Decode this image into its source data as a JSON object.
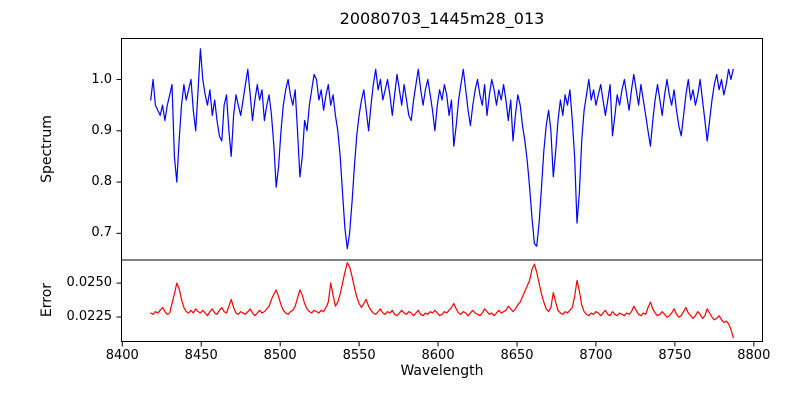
{
  "title": "20080703_1445m28_013",
  "axes": {
    "x": {
      "label": "Wavelength",
      "ticks": [
        8400,
        8450,
        8500,
        8550,
        8600,
        8650,
        8700,
        8750,
        8800
      ]
    },
    "spectrum": {
      "ylabel": "Spectrum",
      "ytick_labels": [
        "1.0",
        "0.9",
        "0.8",
        "0.7"
      ],
      "ytick_values": [
        1.0,
        0.9,
        0.8,
        0.7
      ]
    },
    "error": {
      "ylabel": "Error",
      "ytick_labels": [
        "0.0250",
        "0.0225"
      ],
      "ytick_values": [
        0.025,
        0.0225
      ]
    }
  },
  "chart_data": [
    {
      "type": "line",
      "name": "spectrum",
      "title": "20080703_1445m28_013",
      "ylabel": "Spectrum",
      "color": "#0000ff",
      "grid": false,
      "legend": "none",
      "x_start": 8418,
      "x_step": 1.5,
      "xlim": [
        8399.5,
        8805.5
      ],
      "ylim": [
        0.648,
        1.08
      ],
      "yticks": [
        0.7,
        0.8,
        0.9,
        1.0
      ],
      "features_note": "absorption lines near 8434, 8468, 8498, 8513, 8542 (deep ~0.67), 8610, 8648, 8662 (deep ~0.675), 8673, 8688, 8711, 8734, 8755, 8771",
      "values": [
        0.96,
        1.0,
        0.95,
        0.94,
        0.93,
        0.95,
        0.92,
        0.95,
        0.97,
        0.99,
        0.85,
        0.8,
        0.88,
        0.95,
        0.99,
        0.96,
        0.98,
        1.0,
        0.94,
        0.9,
        0.98,
        1.06,
        1.0,
        0.97,
        0.95,
        0.98,
        0.93,
        0.96,
        0.92,
        0.89,
        0.88,
        0.95,
        0.97,
        0.9,
        0.85,
        0.93,
        0.97,
        0.95,
        0.93,
        0.96,
        0.99,
        1.02,
        0.97,
        0.92,
        0.96,
        0.99,
        0.96,
        0.98,
        0.92,
        0.95,
        0.97,
        0.93,
        0.87,
        0.79,
        0.83,
        0.9,
        0.95,
        0.98,
        1.0,
        0.97,
        0.95,
        0.98,
        0.9,
        0.81,
        0.85,
        0.92,
        0.9,
        0.95,
        0.98,
        1.01,
        1.0,
        0.96,
        0.98,
        0.94,
        0.97,
        0.99,
        0.95,
        0.97,
        0.93,
        0.9,
        0.85,
        0.78,
        0.71,
        0.67,
        0.7,
        0.76,
        0.83,
        0.89,
        0.93,
        0.96,
        0.98,
        0.94,
        0.9,
        0.95,
        0.99,
        1.02,
        0.98,
        1.0,
        0.96,
        0.98,
        1.0,
        0.97,
        0.93,
        0.97,
        1.01,
        0.98,
        0.95,
        0.99,
        0.96,
        0.93,
        0.92,
        0.96,
        0.99,
        1.02,
        0.98,
        0.95,
        0.98,
        1.0,
        0.97,
        0.94,
        0.9,
        0.95,
        0.98,
        0.96,
        0.99,
        0.97,
        0.93,
        0.96,
        0.87,
        0.91,
        0.96,
        0.99,
        1.02,
        0.98,
        0.94,
        0.91,
        0.95,
        0.98,
        1.0,
        0.97,
        0.95,
        0.99,
        0.93,
        0.97,
        1.0,
        0.98,
        0.95,
        0.98,
        0.96,
        0.99,
        0.96,
        0.92,
        0.96,
        0.88,
        0.93,
        0.97,
        0.95,
        0.91,
        0.88,
        0.84,
        0.79,
        0.73,
        0.68,
        0.675,
        0.72,
        0.79,
        0.86,
        0.91,
        0.94,
        0.9,
        0.81,
        0.86,
        0.92,
        0.96,
        0.93,
        0.97,
        0.95,
        0.98,
        0.92,
        0.85,
        0.72,
        0.78,
        0.88,
        0.94,
        0.97,
        1.0,
        0.96,
        0.98,
        0.95,
        0.97,
        0.99,
        0.96,
        0.93,
        0.96,
        0.99,
        0.89,
        0.93,
        0.97,
        0.95,
        0.98,
        1.0,
        0.97,
        0.94,
        0.98,
        1.01,
        0.98,
        0.95,
        0.99,
        0.96,
        0.93,
        0.9,
        0.87,
        0.92,
        0.96,
        0.99,
        0.96,
        0.93,
        0.97,
        1.0,
        0.97,
        0.95,
        0.98,
        0.94,
        0.91,
        0.89,
        0.93,
        0.97,
        1.0,
        0.96,
        0.98,
        0.95,
        0.97,
        1.0,
        0.96,
        0.92,
        0.88,
        0.92,
        0.96,
        0.99,
        1.01,
        0.98,
        1.0,
        0.97,
        0.99,
        1.02,
        1.0,
        1.02
      ]
    },
    {
      "type": "line",
      "name": "error",
      "ylabel": "Error",
      "xlabel": "Wavelength",
      "color": "#ff0000",
      "grid": false,
      "legend": "none",
      "x_start": 8418,
      "x_step": 1.5,
      "xlim": [
        8399.5,
        8805.5
      ],
      "ylim": [
        0.0207,
        0.0267
      ],
      "yticks": [
        0.0225,
        0.025
      ],
      "xticks": [
        8400,
        8450,
        8500,
        8550,
        8600,
        8650,
        8700,
        8750,
        8800
      ],
      "features_note": "error peaks ~0.0265 at 8542 and ~0.0264 at 8661; baseline ~0.0228 declining to ~0.021 at right edge",
      "values": [
        0.0228,
        0.0227,
        0.0229,
        0.0228,
        0.023,
        0.0232,
        0.0229,
        0.0227,
        0.0228,
        0.0235,
        0.0242,
        0.025,
        0.0246,
        0.0238,
        0.0232,
        0.0229,
        0.0228,
        0.023,
        0.0228,
        0.0231,
        0.0229,
        0.0228,
        0.023,
        0.0228,
        0.0226,
        0.0229,
        0.0231,
        0.0228,
        0.0227,
        0.023,
        0.0232,
        0.0229,
        0.0228,
        0.0233,
        0.0238,
        0.0232,
        0.0228,
        0.0227,
        0.0229,
        0.0228,
        0.0227,
        0.0229,
        0.0231,
        0.0228,
        0.0226,
        0.0228,
        0.023,
        0.0228,
        0.0229,
        0.0231,
        0.0233,
        0.0238,
        0.0242,
        0.0245,
        0.024,
        0.0234,
        0.023,
        0.0228,
        0.0227,
        0.0229,
        0.023,
        0.0233,
        0.0239,
        0.0245,
        0.0241,
        0.0235,
        0.0231,
        0.0229,
        0.0228,
        0.023,
        0.0229,
        0.0228,
        0.023,
        0.0229,
        0.0232,
        0.0236,
        0.025,
        0.0241,
        0.0233,
        0.0236,
        0.0242,
        0.025,
        0.0258,
        0.0265,
        0.0262,
        0.0255,
        0.0247,
        0.024,
        0.0235,
        0.0232,
        0.0235,
        0.0238,
        0.0233,
        0.023,
        0.0228,
        0.0227,
        0.0229,
        0.0231,
        0.0228,
        0.0227,
        0.0229,
        0.0228,
        0.023,
        0.0227,
        0.0226,
        0.0228,
        0.023,
        0.0228,
        0.0227,
        0.0229,
        0.0228,
        0.0226,
        0.0228,
        0.023,
        0.0227,
        0.0226,
        0.0228,
        0.0227,
        0.0229,
        0.0228,
        0.023,
        0.0228,
        0.0226,
        0.0227,
        0.0229,
        0.0228,
        0.023,
        0.0232,
        0.0235,
        0.0231,
        0.0228,
        0.0227,
        0.0229,
        0.0228,
        0.0226,
        0.0228,
        0.023,
        0.0228,
        0.0227,
        0.0226,
        0.0228,
        0.0231,
        0.0229,
        0.0227,
        0.0228,
        0.0226,
        0.0228,
        0.023,
        0.0228,
        0.0229,
        0.023,
        0.0233,
        0.0231,
        0.0229,
        0.0231,
        0.0234,
        0.0236,
        0.024,
        0.0244,
        0.0248,
        0.0252,
        0.026,
        0.0264,
        0.0258,
        0.025,
        0.0242,
        0.0236,
        0.0231,
        0.0229,
        0.0232,
        0.0243,
        0.0236,
        0.023,
        0.0228,
        0.0227,
        0.0229,
        0.0228,
        0.023,
        0.0232,
        0.024,
        0.0252,
        0.0244,
        0.0234,
        0.0229,
        0.0227,
        0.0226,
        0.0228,
        0.0227,
        0.0229,
        0.0228,
        0.0226,
        0.0228,
        0.023,
        0.0227,
        0.0226,
        0.0229,
        0.0227,
        0.0226,
        0.0228,
        0.0227,
        0.0226,
        0.0228,
        0.0227,
        0.0229,
        0.0233,
        0.023,
        0.0227,
        0.0226,
        0.0228,
        0.0227,
        0.0232,
        0.0236,
        0.0231,
        0.0228,
        0.0226,
        0.0227,
        0.0229,
        0.0227,
        0.0225,
        0.0226,
        0.0228,
        0.0231,
        0.0227,
        0.0225,
        0.0226,
        0.0229,
        0.0232,
        0.0228,
        0.0226,
        0.0224,
        0.0226,
        0.0229,
        0.0227,
        0.0224,
        0.0226,
        0.0231,
        0.0228,
        0.0225,
        0.0223,
        0.0224,
        0.0226,
        0.0223,
        0.0221,
        0.0222,
        0.022,
        0.0216,
        0.021
      ]
    }
  ]
}
